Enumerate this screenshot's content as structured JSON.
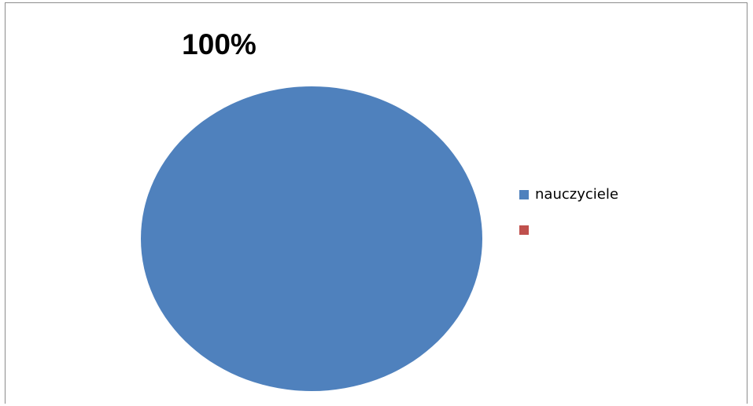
{
  "chart_data": {
    "type": "pie",
    "title": "100%",
    "categories": [
      "nauczyciele",
      ""
    ],
    "values": [
      100,
      0
    ],
    "colors": [
      "#4f81bd",
      "#c0504d"
    ],
    "legend_position": "right"
  }
}
